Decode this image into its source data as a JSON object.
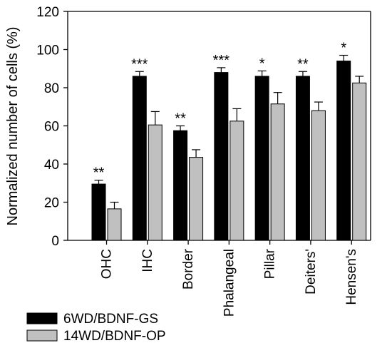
{
  "chart_data": {
    "type": "bar",
    "ylabel": "Normalized number of cells (%)",
    "xlabel": "",
    "ylim": [
      0,
      120
    ],
    "yticks": [
      0,
      20,
      40,
      60,
      80,
      100,
      120
    ],
    "categories": [
      "OHC",
      "IHC",
      "Border",
      "Phalangeal",
      "Pillar",
      "Deiters'",
      "Hensen's"
    ],
    "series": [
      {
        "name": "6WD/BDNF-GS",
        "color": "#000000",
        "values": [
          29.5,
          86,
          57.5,
          88,
          86,
          86,
          94
        ],
        "errors": [
          2,
          2.5,
          2.5,
          2.5,
          2.8,
          2.5,
          3
        ]
      },
      {
        "name": "14WD/BDNF-OP",
        "color": "#c0c0c0",
        "values": [
          16.5,
          60.5,
          43.5,
          62.5,
          71.5,
          68,
          82.5
        ],
        "errors": [
          3.5,
          7,
          4,
          6.5,
          6,
          4.5,
          3.5
        ]
      }
    ],
    "significance": [
      "**",
      "***",
      "**",
      "***",
      "*",
      "**",
      "*"
    ],
    "grid": false,
    "legend_position": "bottom-left"
  }
}
